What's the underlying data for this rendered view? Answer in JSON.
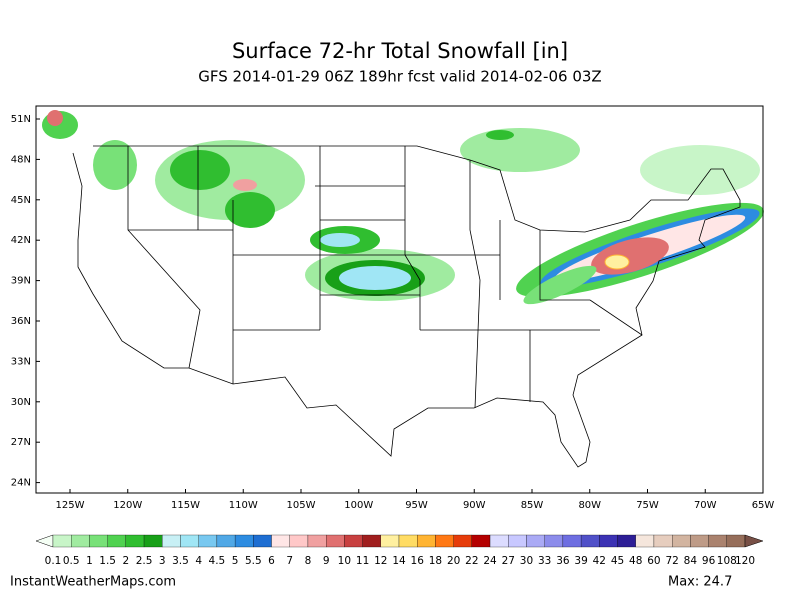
{
  "header": {
    "title": "Surface 72-hr Total Snowfall [in]",
    "subtitle": "GFS 2014-01-29 06Z 189hr fcst valid 2014-02-06 03Z"
  },
  "map": {
    "lat_labels": [
      "51N",
      "48N",
      "45N",
      "42N",
      "39N",
      "36N",
      "33N",
      "30N",
      "27N",
      "24N"
    ],
    "lon_labels": [
      "125W",
      "120W",
      "115W",
      "110W",
      "105W",
      "100W",
      "95W",
      "90W",
      "85W",
      "80W",
      "75W",
      "70W",
      "65W"
    ]
  },
  "colorbar": {
    "labels": [
      "0.1",
      "0.5",
      "1",
      "1.5",
      "2",
      "2.5",
      "3",
      "3.5",
      "4",
      "4.5",
      "5",
      "5.5",
      "6",
      "7",
      "8",
      "9",
      "10",
      "11",
      "12",
      "14",
      "16",
      "18",
      "20",
      "22",
      "24",
      "27",
      "30",
      "33",
      "36",
      "39",
      "42",
      "45",
      "48",
      "60",
      "72",
      "84",
      "96",
      "108",
      "120"
    ],
    "colors": [
      "#c8f5c8",
      "#a0eba0",
      "#78e178",
      "#50d250",
      "#30be30",
      "#18a018",
      "#c8f0f5",
      "#a0e6f5",
      "#78c8f0",
      "#50a8e6",
      "#2d8ce1",
      "#1e6ed2",
      "#ffe6e6",
      "#ffc8c8",
      "#f0a0a0",
      "#e07070",
      "#c84040",
      "#a01e1e",
      "#fff0a0",
      "#ffdc64",
      "#ffb432",
      "#ff7814",
      "#e63c0a",
      "#b40000",
      "#dcdcff",
      "#c8c8ff",
      "#aaaaf5",
      "#8c8ceb",
      "#6e6ee1",
      "#5050c8",
      "#3c32b4",
      "#2d1e96",
      "#f5e6dc",
      "#e6cdbe",
      "#d2b4a0",
      "#be9b87",
      "#aa826e",
      "#966e5a"
    ],
    "over_color": "#785046",
    "under_color": "#f5fff5"
  },
  "footer": {
    "site": "InstantWeatherMaps.com",
    "max": "Max: 24.7"
  }
}
